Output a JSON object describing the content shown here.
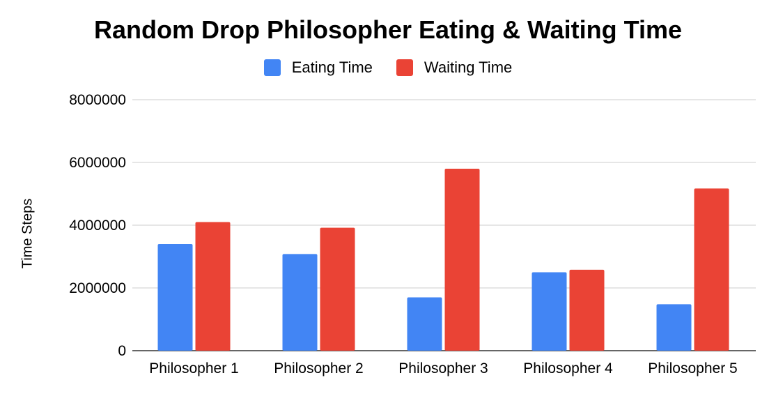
{
  "chart_data": {
    "type": "bar",
    "title": "Random Drop Philosopher Eating & Waiting Time",
    "xlabel": "",
    "ylabel": "Time Steps",
    "categories": [
      "Philosopher 1",
      "Philosopher 2",
      "Philosopher 3",
      "Philosopher 4",
      "Philosopher 5"
    ],
    "series": [
      {
        "name": "Eating Time",
        "color": "#4285f4",
        "values": [
          3400000,
          3080000,
          1700000,
          2500000,
          1480000
        ]
      },
      {
        "name": "Waiting Time",
        "color": "#ea4335",
        "values": [
          4100000,
          3920000,
          5800000,
          2580000,
          5170000
        ]
      }
    ],
    "yticks": [
      "0",
      "2000000",
      "4000000",
      "6000000",
      "8000000"
    ],
    "ylim": [
      0,
      8000000
    ],
    "grid": true,
    "legend_position": "top"
  }
}
